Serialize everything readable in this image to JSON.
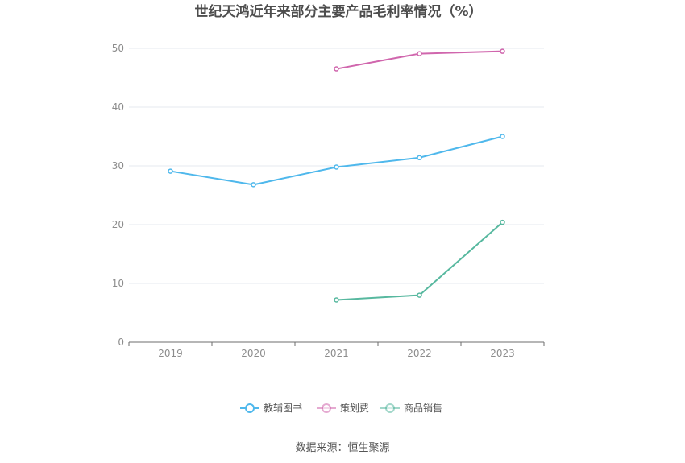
{
  "chart_data": {
    "type": "line",
    "title": "世纪天鸿近年来部分主要产品毛利率情况（%）",
    "categories": [
      "2019",
      "2020",
      "2021",
      "2022",
      "2023"
    ],
    "ylim": [
      0,
      50
    ],
    "yticks": [
      0,
      10,
      20,
      30,
      40,
      50
    ],
    "grid": true,
    "legend_position": "bottom",
    "series": [
      {
        "name": "教辅图书",
        "color": "#4fb8ec",
        "values": [
          29.1,
          26.8,
          29.8,
          31.4,
          35.0
        ]
      },
      {
        "name": "策划费",
        "color": "#d066ad",
        "values": [
          null,
          null,
          46.5,
          49.1,
          49.5
        ]
      },
      {
        "name": "商品销售",
        "color": "#57b89f",
        "values": [
          null,
          null,
          7.2,
          8.0,
          20.4
        ]
      }
    ]
  },
  "footer": {
    "source": "数据来源：恒生聚源"
  }
}
